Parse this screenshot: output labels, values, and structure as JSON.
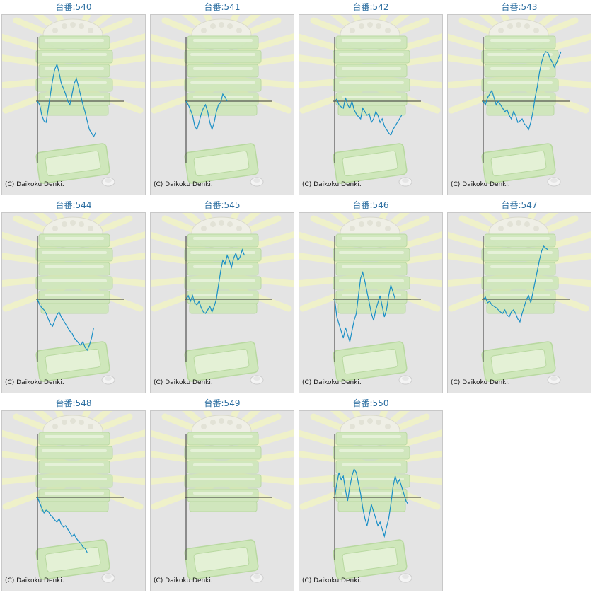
{
  "title_prefix": "台番:",
  "copyright": "(C) Daikoku Denki.",
  "line_color": "#1a8fc6",
  "title_color": "#2d6fa1",
  "chart_data": [
    {
      "type": "line",
      "title": "台番:540",
      "machine": "540",
      "values": [
        0,
        -5,
        -20,
        -28,
        -30,
        -10,
        10,
        30,
        45,
        52,
        40,
        25,
        18,
        10,
        0,
        -5,
        10,
        25,
        32,
        20,
        8,
        -5,
        -15,
        -28,
        -40,
        -45,
        -50,
        -44
      ]
    },
    {
      "type": "line",
      "title": "台番:541",
      "machine": "541",
      "values": [
        0,
        -5,
        -12,
        -20,
        -35,
        -40,
        -30,
        -18,
        -10,
        -5,
        -15,
        -30,
        -40,
        -30,
        -15,
        -5,
        -2,
        10,
        6,
        0
      ]
    },
    {
      "type": "line",
      "title": "台番:542",
      "machine": "542",
      "values": [
        0,
        3,
        -5,
        -8,
        -10,
        5,
        -5,
        -10,
        0,
        -12,
        -18,
        -22,
        -25,
        -10,
        -15,
        -20,
        -18,
        -30,
        -25,
        -15,
        -20,
        -30,
        -25,
        -35,
        -40,
        -45,
        -48,
        -40,
        -35,
        -30,
        -25,
        -20
      ]
    },
    {
      "type": "line",
      "title": "台番:543",
      "machine": "543",
      "values": [
        0,
        -5,
        5,
        10,
        15,
        5,
        -5,
        0,
        -5,
        -10,
        -15,
        -12,
        -20,
        -25,
        -15,
        -20,
        -30,
        -28,
        -25,
        -32,
        -35,
        -40,
        -30,
        -15,
        5,
        20,
        40,
        55,
        65,
        70,
        68,
        60,
        55,
        48,
        55,
        62,
        70
      ]
    },
    {
      "type": "line",
      "title": "台番:544",
      "machine": "544",
      "values": [
        0,
        -8,
        -12,
        -15,
        -20,
        -28,
        -35,
        -38,
        -30,
        -22,
        -18,
        -25,
        -30,
        -35,
        -40,
        -45,
        -48,
        -55,
        -58,
        -62,
        -65,
        -60,
        -68,
        -72,
        -65,
        -55,
        -40
      ]
    },
    {
      "type": "line",
      "title": "台番:545",
      "machine": "545",
      "values": [
        0,
        5,
        -3,
        5,
        -5,
        -8,
        -3,
        -12,
        -18,
        -20,
        -15,
        -10,
        -18,
        -10,
        0,
        20,
        40,
        55,
        50,
        62,
        55,
        45,
        58,
        65,
        55,
        60,
        70,
        62
      ]
    },
    {
      "type": "line",
      "title": "台番:546",
      "machine": "546",
      "values": [
        0,
        -25,
        -35,
        -45,
        -55,
        -40,
        -50,
        -60,
        -45,
        -30,
        -20,
        5,
        30,
        38,
        25,
        10,
        -5,
        -20,
        -30,
        -15,
        -5,
        5,
        -10,
        -25,
        -15,
        5,
        20,
        10,
        0
      ]
    },
    {
      "type": "line",
      "title": "台番:547",
      "machine": "547",
      "values": [
        0,
        3,
        -5,
        -3,
        -8,
        -10,
        -12,
        -15,
        -18,
        -20,
        -15,
        -22,
        -25,
        -18,
        -15,
        -20,
        -28,
        -32,
        -20,
        -10,
        0,
        5,
        -5,
        10,
        25,
        40,
        55,
        68,
        75,
        72,
        70
      ]
    },
    {
      "type": "line",
      "title": "台番:548",
      "machine": "548",
      "values": [
        0,
        -8,
        -15,
        -22,
        -18,
        -20,
        -25,
        -28,
        -32,
        -35,
        -30,
        -38,
        -42,
        -40,
        -45,
        -50,
        -55,
        -52,
        -58,
        -62,
        -65,
        -70,
        -72,
        -78
      ]
    },
    {
      "type": "line",
      "title": "台番:549",
      "machine": "549",
      "values": []
    },
    {
      "type": "line",
      "title": "台番:550",
      "machine": "550",
      "values": [
        0,
        20,
        35,
        25,
        30,
        10,
        -5,
        15,
        30,
        40,
        35,
        20,
        5,
        -15,
        -30,
        -40,
        -25,
        -10,
        -20,
        -30,
        -40,
        -35,
        -45,
        -55,
        -42,
        -30,
        -10,
        15,
        30,
        20,
        25,
        15,
        5,
        -5,
        -10
      ]
    }
  ]
}
